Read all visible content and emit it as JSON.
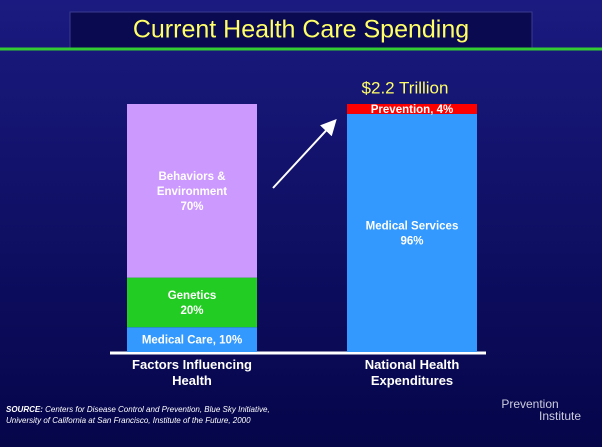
{
  "chart_data": {
    "type": "stacked_bar",
    "title": "Current Health Care Spending",
    "annotation": "$2.2 Trillion",
    "categories": [
      "Factors Influencing\nHealth",
      "National Health\nExpenditures"
    ],
    "ylim": [
      0,
      100
    ],
    "series": [
      {
        "color": "#3399ff",
        "values": [
          10,
          null
        ],
        "value_labels": [
          "Medical Care, 10%",
          null
        ]
      },
      {
        "color": "#22cc22",
        "values": [
          20,
          null
        ],
        "value_labels": [
          "Genetics\n20%",
          null
        ]
      },
      {
        "color": "#cc99ff",
        "values": [
          70,
          null
        ],
        "value_labels": [
          "Behaviors &\nEnvironment\n70%",
          null
        ]
      },
      {
        "color": "#3399ff",
        "values": [
          null,
          96
        ],
        "value_labels": [
          null,
          "Medical Services\n96%"
        ]
      },
      {
        "color": "#ff0000",
        "values": [
          null,
          4
        ],
        "value_labels": [
          null,
          "Prevention, 4%"
        ]
      }
    ]
  },
  "source_label": "SOURCE:",
  "source": "Centers for Disease Control and Prevention, Blue Sky Initiative,\nUniversity of California at San Francisco, Institute of the Future, 2000",
  "logo": [
    "Prevention",
    "Institute"
  ]
}
